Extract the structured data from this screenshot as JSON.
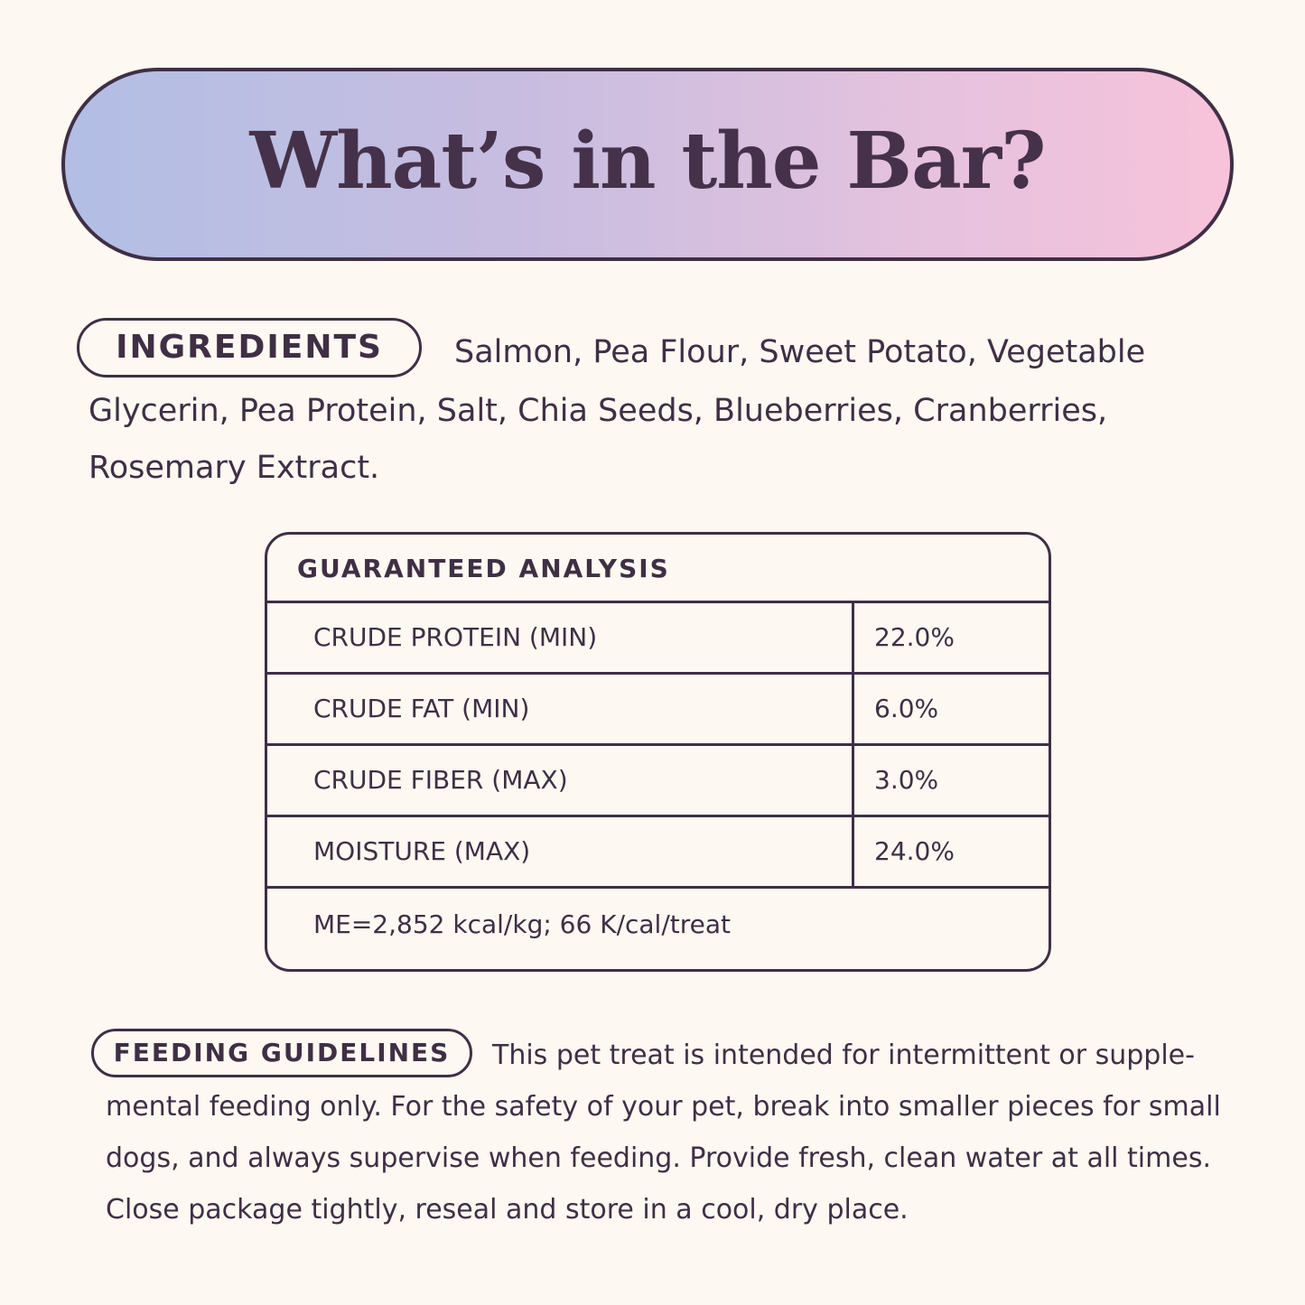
{
  "header": {
    "title": "What’s in the Bar?"
  },
  "ingredients": {
    "label": "INGREDIENTS",
    "text": "Salmon, Pea Flour, Sweet Potato, Vegetable Glycerin, Pea Protein, Salt, Chia Seeds, Blueberries, Cranberries, Rosemary Extract."
  },
  "analysis": {
    "title": "GUARANTEED ANALYSIS",
    "rows": [
      {
        "label": "CRUDE PROTEIN (MIN)",
        "value": "22.0%"
      },
      {
        "label": "CRUDE FAT (MIN)",
        "value": "6.0%"
      },
      {
        "label": "CRUDE FIBER (MAX)",
        "value": "3.0%"
      },
      {
        "label": "MOISTURE (MAX)",
        "value": "24.0%"
      }
    ],
    "footer": "ME=2,852 kcal/kg; 66 K/cal/treat"
  },
  "feeding": {
    "label": "FEEDING GUIDELINES",
    "text": "This pet treat is intended for intermittent or supple­mental feeding only. For the safety of your pet, break into smaller pieces for small dogs, and always supervise when feeding. Provide fresh, clean water at all times. Close package tightly, reseal and store in a cool, dry place."
  },
  "colors": {
    "text": "#3f2f45",
    "background": "#fdf8f1",
    "gradient_start": "#b2bee4",
    "gradient_end": "#f7c3da"
  }
}
